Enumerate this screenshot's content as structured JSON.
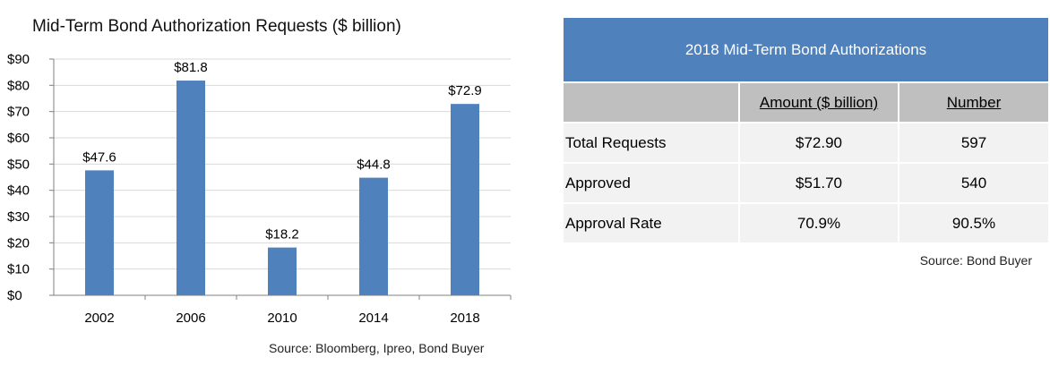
{
  "chart_data": {
    "type": "bar",
    "title": "Mid-Term Bond Authorization Requests ($ billion)",
    "categories": [
      "2002",
      "2006",
      "2010",
      "2014",
      "2018"
    ],
    "values": [
      47.6,
      81.8,
      18.2,
      44.8,
      72.9
    ],
    "data_labels": [
      "$47.6",
      "$81.8",
      "$18.2",
      "$44.8",
      "$72.9"
    ],
    "y_ticks": [
      "$0",
      "$10",
      "$20",
      "$30",
      "$40",
      "$50",
      "$60",
      "$70",
      "$80",
      "$90"
    ],
    "ylim": [
      0,
      90
    ],
    "grid": true,
    "bar_color": "#4f81bd",
    "source": "Source: Bloomberg, Ipreo, Bond Buyer"
  },
  "table": {
    "title": "2018 Mid-Term Bond Authorizations",
    "header": [
      "",
      "Amount ($ billion)",
      "Number"
    ],
    "rows": [
      [
        "Total Requests",
        "$72.90",
        "597"
      ],
      [
        "Approved",
        "$51.70",
        "540"
      ],
      [
        "Approval Rate",
        "70.9%",
        "90.5%"
      ]
    ],
    "source": "Source: Bond Buyer",
    "header_color": "#4f81bd"
  }
}
